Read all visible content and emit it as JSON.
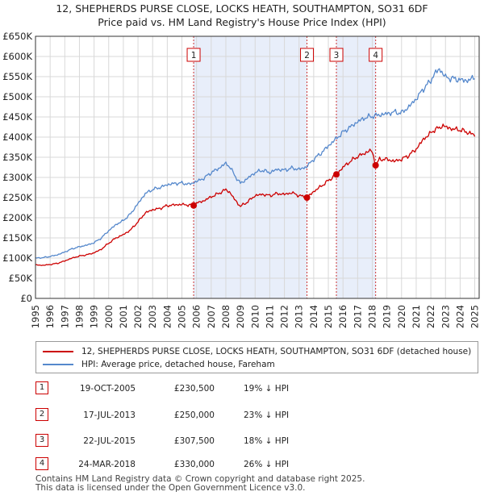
{
  "title": {
    "line1": "12, SHEPHERDS PURSE CLOSE, LOCKS HEATH, SOUTHAMPTON, SO31 6DF",
    "line2": "Price paid vs. HM Land Registry's House Price Index (HPI)"
  },
  "colors": {
    "property": "#cc0000",
    "hpi": "#5588cc",
    "shade": "#e8eefa",
    "grid": "#d8d8d8",
    "vline": "#cc3333"
  },
  "chart_data": {
    "type": "line",
    "title": "Price paid vs. HM Land Registry's House Price Index (HPI)",
    "xlim": [
      1995,
      2025.3
    ],
    "ylim": [
      0,
      650000
    ],
    "x_ticks": [
      1995,
      1996,
      1997,
      1998,
      1999,
      2000,
      2001,
      2002,
      2003,
      2004,
      2005,
      2006,
      2007,
      2008,
      2009,
      2010,
      2011,
      2012,
      2013,
      2014,
      2015,
      2016,
      2017,
      2018,
      2019,
      2020,
      2021,
      2022,
      2023,
      2024,
      2025
    ],
    "y_ticks": [
      0,
      50000,
      100000,
      150000,
      200000,
      250000,
      300000,
      350000,
      400000,
      450000,
      500000,
      550000,
      600000,
      650000
    ],
    "y_tick_labels": [
      "£0",
      "£50K",
      "£100K",
      "£150K",
      "£200K",
      "£250K",
      "£300K",
      "£350K",
      "£400K",
      "£450K",
      "£500K",
      "£550K",
      "£600K",
      "£650K"
    ],
    "grid": true,
    "shaded_ranges": [
      [
        2005.8,
        2013.54
      ],
      [
        2015.55,
        2018.23
      ]
    ],
    "series": [
      {
        "name": "12, SHEPHERDS PURSE CLOSE, LOCKS HEATH, SOUTHAMPTON, SO31 6DF (detached house)",
        "color": "#cc0000",
        "x": [
          1995,
          1995.5,
          1996,
          1996.5,
          1997,
          1997.5,
          1998,
          1998.5,
          1999,
          1999.5,
          2000,
          2000.5,
          2001,
          2001.5,
          2002,
          2002.5,
          2003,
          2003.5,
          2004,
          2004.5,
          2005,
          2005.8,
          2006,
          2006.5,
          2007,
          2007.5,
          2008,
          2008.3,
          2008.6,
          2009,
          2009.5,
          2010,
          2010.5,
          2011,
          2011.5,
          2012,
          2012.5,
          2013,
          2013.54,
          2014,
          2014.5,
          2015,
          2015.55,
          2016,
          2016.5,
          2017,
          2017.5,
          2017.9,
          2018.1,
          2018.23,
          2018.5,
          2019,
          2019.5,
          2020,
          2020.5,
          2021,
          2021.5,
          2022,
          2022.3,
          2022.6,
          2022.8,
          2023,
          2023.5,
          2024,
          2024.5,
          2025
        ],
        "values": [
          83000,
          82000,
          84000,
          87000,
          93000,
          100000,
          105000,
          108000,
          113000,
          122000,
          137000,
          150000,
          158000,
          170000,
          190000,
          212000,
          220000,
          223000,
          230000,
          232000,
          233000,
          230500,
          236000,
          242000,
          252000,
          260000,
          270000,
          262000,
          245000,
          228000,
          240000,
          255000,
          258000,
          255000,
          260000,
          258000,
          262000,
          255000,
          250000,
          265000,
          278000,
          292000,
          307500,
          325000,
          340000,
          352000,
          360000,
          368000,
          352000,
          330000,
          345000,
          345000,
          340000,
          345000,
          355000,
          370000,
          395000,
          410000,
          420000,
          422000,
          430000,
          425000,
          420000,
          418000,
          412000,
          405000
        ]
      },
      {
        "name": "HPI: Average price, detached house, Fareham",
        "color": "#5588cc",
        "x": [
          1995,
          1995.5,
          1996,
          1996.5,
          1997,
          1997.5,
          1998,
          1998.5,
          1999,
          1999.5,
          2000,
          2000.5,
          2001,
          2001.5,
          2002,
          2002.5,
          2003,
          2003.5,
          2004,
          2004.5,
          2005,
          2005.5,
          2006,
          2006.5,
          2007,
          2007.5,
          2008,
          2008.3,
          2008.6,
          2009,
          2009.5,
          2010,
          2010.5,
          2011,
          2011.5,
          2012,
          2012.5,
          2013,
          2013.5,
          2014,
          2014.5,
          2015,
          2015.5,
          2016,
          2016.5,
          2017,
          2017.5,
          2018,
          2018.5,
          2019,
          2019.5,
          2020,
          2020.5,
          2021,
          2021.5,
          2022,
          2022.3,
          2022.6,
          2022.8,
          2023,
          2023.5,
          2024,
          2024.5,
          2025
        ],
        "values": [
          100000,
          101000,
          104000,
          108000,
          115000,
          123000,
          128000,
          132000,
          138000,
          150000,
          168000,
          183000,
          193000,
          210000,
          235000,
          260000,
          270000,
          275000,
          282000,
          285000,
          286000,
          283000,
          290000,
          298000,
          312000,
          322000,
          335000,
          325000,
          305000,
          285000,
          298000,
          312000,
          318000,
          312000,
          320000,
          318000,
          323000,
          320000,
          326000,
          345000,
          360000,
          378000,
          395000,
          412000,
          425000,
          438000,
          448000,
          452000,
          455000,
          458000,
          462000,
          460000,
          475000,
          495000,
          520000,
          540000,
          560000,
          568000,
          560000,
          548000,
          545000,
          542000,
          540000,
          548000
        ]
      }
    ],
    "markers": [
      {
        "label": "1",
        "x": 2005.8,
        "value": 230500
      },
      {
        "label": "2",
        "x": 2013.54,
        "value": 250000
      },
      {
        "label": "3",
        "x": 2015.55,
        "value": 307500
      },
      {
        "label": "4",
        "x": 2018.23,
        "value": 330000
      }
    ]
  },
  "legend": {
    "property_label": "12, SHEPHERDS PURSE CLOSE, LOCKS HEATH, SOUTHAMPTON, SO31 6DF (detached house)",
    "hpi_label": "HPI: Average price, detached house, Fareham"
  },
  "transactions": [
    {
      "num": "1",
      "date": "19-OCT-2005",
      "price": "£230,500",
      "hpi": "19% ↓ HPI"
    },
    {
      "num": "2",
      "date": "17-JUL-2013",
      "price": "£250,000",
      "hpi": "23% ↓ HPI"
    },
    {
      "num": "3",
      "date": "22-JUL-2015",
      "price": "£307,500",
      "hpi": "18% ↓ HPI"
    },
    {
      "num": "4",
      "date": "24-MAR-2018",
      "price": "£330,000",
      "hpi": "26% ↓ HPI"
    }
  ],
  "footer": {
    "line1": "Contains HM Land Registry data © Crown copyright and database right 2025.",
    "line2": "This data is licensed under the Open Government Licence v3.0."
  }
}
